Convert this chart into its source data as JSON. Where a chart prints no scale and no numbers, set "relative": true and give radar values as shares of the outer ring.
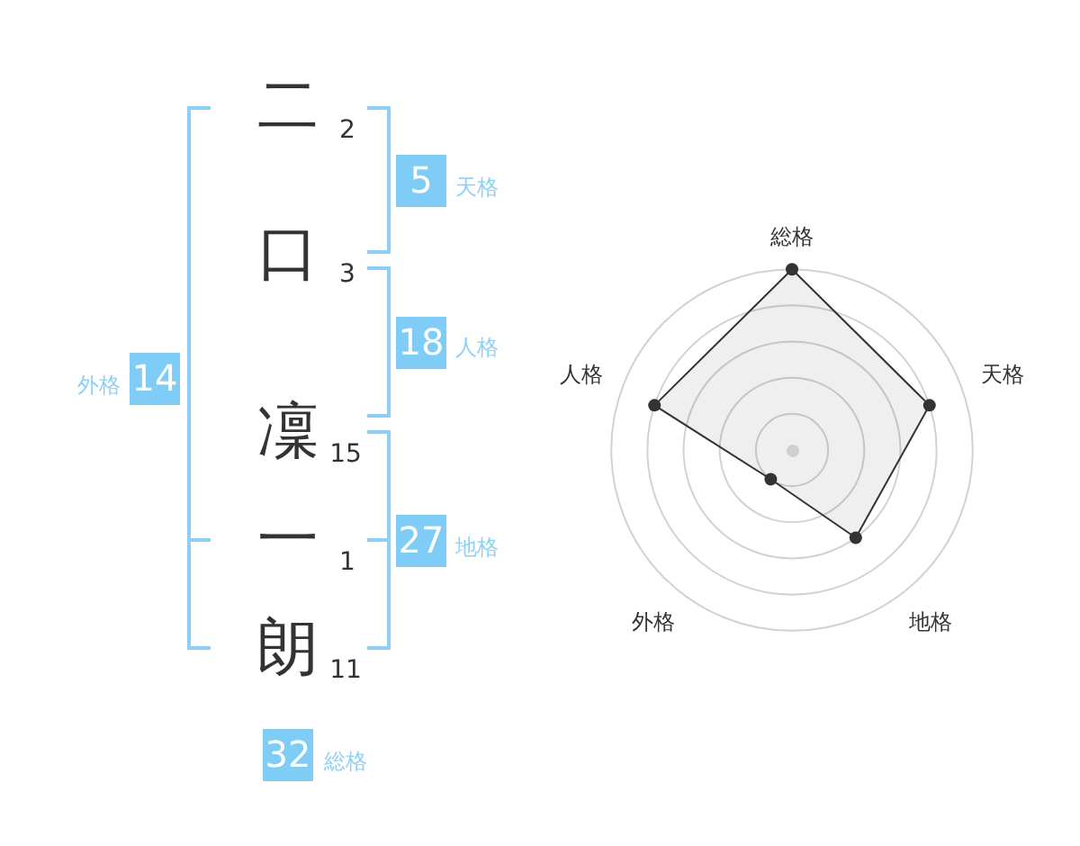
{
  "chart_data": [
    {
      "type": "other",
      "annotations": [
        "二",
        "2",
        "口",
        "3",
        "凜",
        "15",
        "一",
        "1",
        "朗",
        "11",
        "5",
        "天格",
        "18",
        "人格",
        "14",
        "外格",
        "27",
        "地格",
        "32",
        "総格"
      ]
    },
    {
      "type": "radar",
      "categories": [
        "総格",
        "天格",
        "地格",
        "外格",
        "人格"
      ],
      "relative": true,
      "series": [
        {
          "color": "#333333",
          "values": [
            1,
            0.8,
            0.6,
            0.2,
            0.8
          ]
        }
      ],
      "grid": true,
      "marker": "circle"
    }
  ]
}
